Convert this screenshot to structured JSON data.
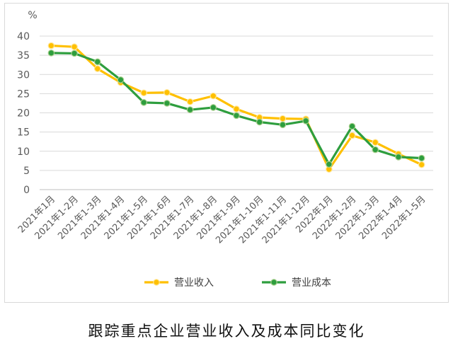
{
  "caption": "跟踪重点企业营业收入及成本同比变化",
  "chart_data": {
    "type": "line",
    "title": "",
    "ylabel": "%",
    "xlabel": "",
    "ylim": [
      0,
      40
    ],
    "yticks": [
      "0",
      "5",
      "10",
      "15",
      "20",
      "25",
      "30",
      "35",
      "40"
    ],
    "grid": true,
    "legend": "bottom",
    "categories": [
      "2021年1月",
      "2021年1-2月",
      "2021年1-3月",
      "2021年1-4月",
      "2021年1-5月",
      "2021年1-6月",
      "2021年1-7月",
      "2021年1-8月",
      "2021年1-9月",
      "2021年1-10月",
      "2021年1-11月",
      "2021年1-12月",
      "2022年1月",
      "2022年1-2月",
      "2022年1-3月",
      "2022年1-4月",
      "2022年1-5月"
    ],
    "series": [
      {
        "name": "营业收入",
        "color": "#ffc000",
        "values": [
          37.5,
          37.2,
          31.5,
          27.9,
          25.2,
          25.3,
          22.9,
          24.4,
          21.0,
          18.8,
          18.5,
          18.4,
          5.3,
          14.1,
          12.3,
          9.3,
          6.5
        ]
      },
      {
        "name": "营业成本",
        "color": "#2e9e3e",
        "values": [
          35.6,
          35.5,
          33.3,
          28.6,
          22.7,
          22.5,
          20.8,
          21.4,
          19.3,
          17.6,
          16.9,
          17.9,
          6.6,
          16.5,
          10.4,
          8.5,
          8.2
        ]
      }
    ]
  }
}
